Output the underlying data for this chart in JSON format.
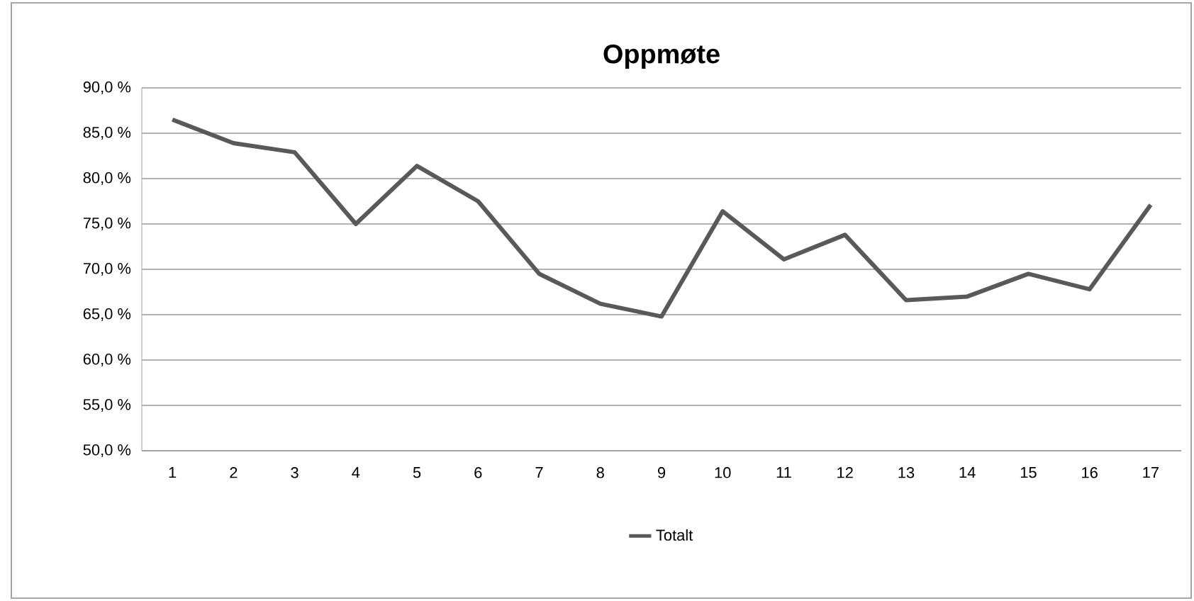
{
  "chart_data": {
    "type": "line",
    "title": "Oppmøte",
    "categories": [
      "1",
      "2",
      "3",
      "4",
      "5",
      "6",
      "7",
      "8",
      "9",
      "10",
      "11",
      "12",
      "13",
      "14",
      "15",
      "16",
      "17"
    ],
    "series": [
      {
        "name": "Totalt",
        "color": "#595959",
        "values": [
          86.5,
          83.9,
          82.9,
          75.0,
          81.4,
          77.5,
          69.5,
          66.2,
          64.8,
          76.4,
          71.1,
          73.8,
          66.6,
          67.0,
          69.5,
          67.8,
          77.1
        ]
      }
    ],
    "ylim": [
      50,
      90
    ],
    "yticks": [
      {
        "value": 50,
        "label": "50,0 %"
      },
      {
        "value": 55,
        "label": "55,0 %"
      },
      {
        "value": 60,
        "label": "60,0 %"
      },
      {
        "value": 65,
        "label": "65,0 %"
      },
      {
        "value": 70,
        "label": "70,0 %"
      },
      {
        "value": 75,
        "label": "75,0 %"
      },
      {
        "value": 80,
        "label": "80,0 %"
      },
      {
        "value": 85,
        "label": "85,0 %"
      },
      {
        "value": 90,
        "label": "90,0 %"
      }
    ],
    "grid": "y",
    "legend": "bottom",
    "marker": "none",
    "line_style": "solid"
  }
}
